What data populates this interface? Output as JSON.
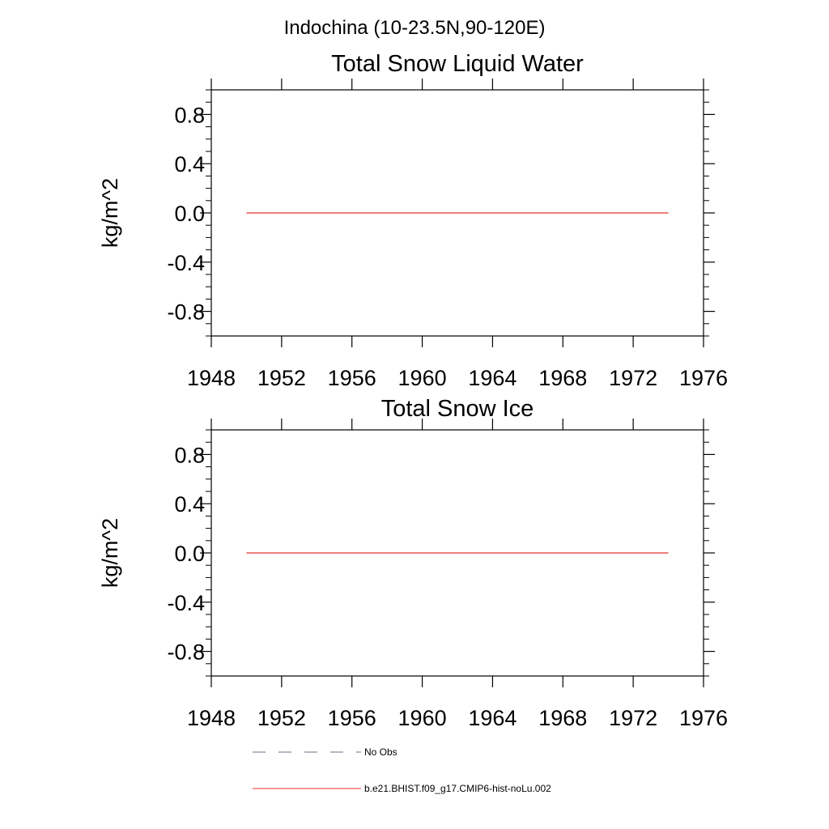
{
  "suptitle": "Indochina (10-23.5N,90-120E)",
  "chart_data": [
    {
      "type": "line",
      "title": "Total Snow Liquid Water",
      "xlabel": "",
      "ylabel": "kg/m^2",
      "xlim": [
        1948,
        1976
      ],
      "ylim": [
        -1.0,
        1.0
      ],
      "xticks": [
        1948,
        1952,
        1956,
        1960,
        1964,
        1968,
        1972,
        1976
      ],
      "xtick_labels": [
        "1948",
        "1952",
        "1956",
        "1960",
        "1964",
        "1968",
        "1972",
        "1976"
      ],
      "yticks": [
        0.8,
        0.4,
        0.0,
        -0.4,
        -0.8
      ],
      "ytick_labels": [
        "0.8",
        "0.4",
        "0.0",
        "-0.4",
        "-0.8"
      ],
      "grid": false,
      "series": [
        {
          "name": "b.e21.BHIST.f09_g17.CMIP6-hist-noLu.002",
          "color": "#e8302f",
          "x": [
            1950,
            1974
          ],
          "y": [
            0.0,
            0.0
          ]
        }
      ]
    },
    {
      "type": "line",
      "title": "Total Snow Ice",
      "xlabel": "",
      "ylabel": "kg/m^2",
      "xlim": [
        1948,
        1976
      ],
      "ylim": [
        -1.0,
        1.0
      ],
      "xticks": [
        1948,
        1952,
        1956,
        1960,
        1964,
        1968,
        1972,
        1976
      ],
      "xtick_labels": [
        "1948",
        "1952",
        "1956",
        "1960",
        "1964",
        "1968",
        "1972",
        "1976"
      ],
      "yticks": [
        0.8,
        0.4,
        0.0,
        -0.4,
        -0.8
      ],
      "ytick_labels": [
        "0.8",
        "0.4",
        "0.0",
        "-0.4",
        "-0.8"
      ],
      "grid": false,
      "series": [
        {
          "name": "b.e21.BHIST.f09_g17.CMIP6-hist-noLu.002",
          "color": "#e8302f",
          "x": [
            1950,
            1974
          ],
          "y": [
            0.0,
            0.0
          ]
        }
      ]
    }
  ],
  "legend": {
    "placement": "bottom",
    "items": [
      {
        "label": "No Obs",
        "style": "dashed",
        "color": "#6b6f85"
      },
      {
        "label": "b.e21.BHIST.f09_g17.CMIP6-hist-noLu.002",
        "style": "solid",
        "color": "#e8302f"
      }
    ]
  }
}
